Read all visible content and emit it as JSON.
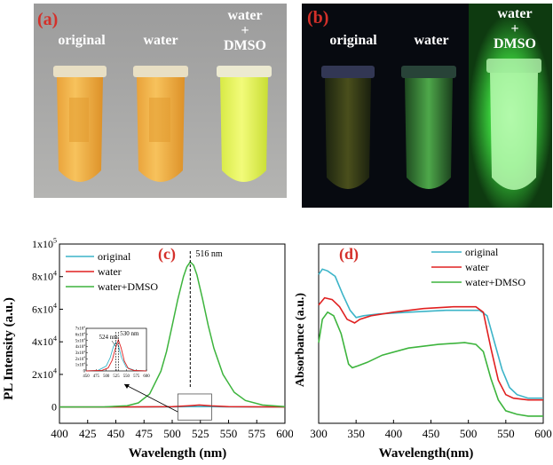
{
  "panel_a": {
    "letter": "(a)",
    "labels": [
      "original",
      "water",
      "water\n+\nDMSO"
    ]
  },
  "panel_b": {
    "letter": "(b)",
    "labels": [
      "original",
      "water",
      "water\n+\nDMSO"
    ]
  },
  "chart_data": [
    {
      "type": "line",
      "panel_letter": "(c)",
      "xlabel": "Wavelength (nm)",
      "ylabel": "PL Intensity (a.u.)",
      "xlim": [
        400,
        600
      ],
      "ylim": [
        -10000,
        100000
      ],
      "xticks": [
        400,
        425,
        450,
        475,
        500,
        525,
        550,
        575,
        600
      ],
      "yticks": [
        {
          "value": 0,
          "label": "0"
        },
        {
          "value": 20000,
          "label": "2x10",
          "exp": "4"
        },
        {
          "value": 40000,
          "label": "4x10",
          "exp": "4"
        },
        {
          "value": 60000,
          "label": "6x10",
          "exp": "4"
        },
        {
          "value": 80000,
          "label": "8x10",
          "exp": "4"
        },
        {
          "value": 100000,
          "label": "1x10",
          "exp": "5"
        }
      ],
      "legend_position": "top-left",
      "peak_annotation": {
        "x": 516,
        "label": "516 nm"
      },
      "series": [
        {
          "name": "original",
          "color": "#3cb4c8",
          "x": [
            400,
            450,
            500,
            525,
            550,
            600
          ],
          "y": [
            0,
            0,
            100,
            300,
            100,
            0
          ]
        },
        {
          "name": "water",
          "color": "#e02020",
          "x": [
            400,
            450,
            500,
            515,
            524,
            535,
            550,
            600
          ],
          "y": [
            0,
            0,
            200,
            800,
            1200,
            700,
            200,
            0
          ]
        },
        {
          "name": "water+DMSO",
          "color": "#3db43d",
          "x": [
            400,
            440,
            460,
            470,
            480,
            490,
            495,
            500,
            505,
            510,
            513,
            516,
            519,
            522,
            527,
            532,
            537,
            545,
            555,
            565,
            580,
            600
          ],
          "y": [
            0,
            100,
            800,
            2500,
            8000,
            22000,
            34000,
            50000,
            66000,
            80000,
            86000,
            89000,
            87000,
            81000,
            66000,
            50000,
            36000,
            20000,
            9000,
            4000,
            1200,
            200
          ]
        }
      ],
      "inset": {
        "xlim": [
          450,
          600
        ],
        "ylim": [
          0,
          70000
        ],
        "xticks": [
          450,
          475,
          500,
          525,
          550,
          575,
          600
        ],
        "yticks": [
          {
            "value": 0,
            "label": "0"
          },
          {
            "value": 10000,
            "label": "1x10",
            "exp": "4"
          },
          {
            "value": 20000,
            "label": "2x10",
            "exp": "4"
          },
          {
            "value": 30000,
            "label": "3x10",
            "exp": "4"
          },
          {
            "value": 40000,
            "label": "4x10",
            "exp": "4"
          },
          {
            "value": 50000,
            "label": "5x10",
            "exp": "4"
          },
          {
            "value": 60000,
            "label": "6x10",
            "exp": "4"
          },
          {
            "value": 70000,
            "label": "7x10",
            "exp": "4"
          }
        ],
        "annotations": [
          {
            "x": 524,
            "label": "524 nm"
          },
          {
            "x": 530,
            "label": "530 nm"
          }
        ],
        "series": [
          {
            "name": "original",
            "color": "#3cb4c8",
            "x": [
              450,
              480,
              500,
              510,
              518,
              524,
              530,
              538,
              550,
              570,
              600
            ],
            "y": [
              0,
              1000,
              8000,
              22000,
              40000,
              47000,
              42000,
              22000,
              6000,
              1000,
              0
            ]
          },
          {
            "name": "water",
            "color": "#e02020",
            "x": [
              450,
              490,
              505,
              515,
              522,
              530,
              537,
              545,
              555,
              570,
              600
            ],
            "y": [
              0,
              1000,
              5000,
              18000,
              35000,
              51000,
              38000,
              16000,
              4000,
              800,
              0
            ]
          }
        ]
      }
    },
    {
      "type": "line",
      "panel_letter": "(d)",
      "xlabel": "Wavelength(nm)",
      "ylabel": "Absorbance (a.u.)",
      "xlim": [
        300,
        600
      ],
      "ylim": [
        0,
        1
      ],
      "xticks": [
        300,
        350,
        400,
        450,
        500,
        550,
        600
      ],
      "legend_position": "top-right",
      "series": [
        {
          "name": "original",
          "color": "#3cb4c8",
          "x": [
            300,
            305,
            312,
            322,
            332,
            342,
            350,
            360,
            380,
            420,
            470,
            515,
            525,
            535,
            545,
            555,
            565,
            580,
            600
          ],
          "y": [
            0.83,
            0.86,
            0.85,
            0.82,
            0.72,
            0.63,
            0.59,
            0.6,
            0.61,
            0.62,
            0.63,
            0.63,
            0.6,
            0.45,
            0.3,
            0.2,
            0.16,
            0.14,
            0.14
          ]
        },
        {
          "name": "water",
          "color": "#e02020",
          "x": [
            300,
            308,
            318,
            328,
            338,
            348,
            355,
            370,
            400,
            440,
            480,
            510,
            520,
            530,
            540,
            550,
            560,
            580,
            600
          ],
          "y": [
            0.66,
            0.7,
            0.69,
            0.65,
            0.58,
            0.56,
            0.58,
            0.6,
            0.62,
            0.64,
            0.65,
            0.65,
            0.62,
            0.42,
            0.24,
            0.16,
            0.14,
            0.13,
            0.13
          ]
        },
        {
          "name": "water+DMSO",
          "color": "#3db43d",
          "x": [
            300,
            305,
            312,
            320,
            330,
            340,
            345,
            352,
            365,
            385,
            420,
            460,
            495,
            510,
            520,
            530,
            540,
            550,
            565,
            580,
            600
          ],
          "y": [
            0.45,
            0.58,
            0.62,
            0.6,
            0.5,
            0.33,
            0.31,
            0.32,
            0.34,
            0.38,
            0.42,
            0.44,
            0.45,
            0.44,
            0.4,
            0.25,
            0.13,
            0.07,
            0.05,
            0.04,
            0.04
          ]
        }
      ]
    }
  ]
}
